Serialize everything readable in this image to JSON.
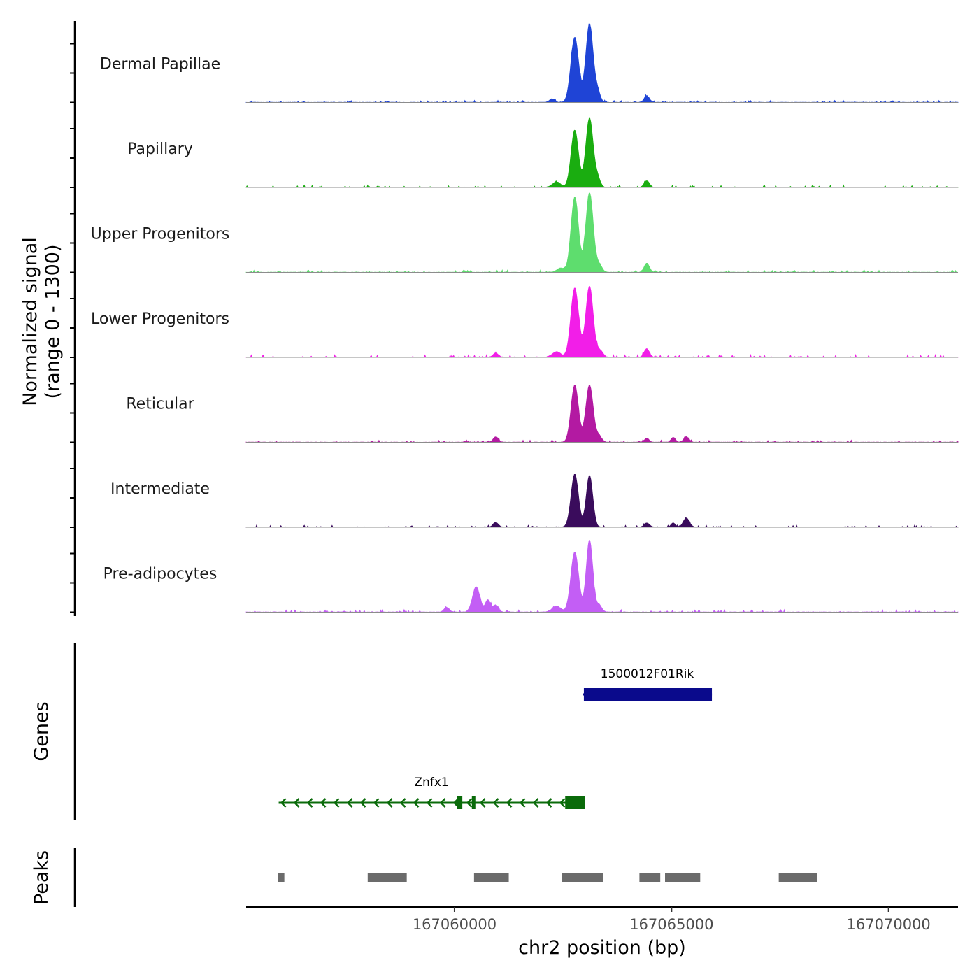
{
  "chart_data": {
    "type": "area",
    "title": "",
    "chromosome": "chr2",
    "xlabel": "chr2 position (bp)",
    "xlim": [
      167055200,
      167071600
    ],
    "xticks": [
      167060000,
      167065000,
      167070000
    ],
    "xtick_labels": [
      "167060000",
      "167065000",
      "167070000"
    ],
    "coverage": {
      "ylabel": "Normalized signal\n(range 0 - 1300)",
      "ylabel_lines": [
        "Normalized signal",
        "(range 0 - 1300)"
      ],
      "ylim": [
        0,
        1300
      ],
      "baseline_color": "#8c8c8c",
      "tracks": [
        {
          "name": "Dermal Papillae",
          "color": "#1f44d6",
          "peaks": [
            {
              "center": 167062770,
              "width": 90,
              "height": 1080
            },
            {
              "center": 167063110,
              "width": 85,
              "height": 1300
            },
            {
              "center": 167063300,
              "width": 60,
              "height": 160
            },
            {
              "center": 167064430,
              "width": 60,
              "height": 110
            },
            {
              "center": 167062250,
              "width": 60,
              "height": 60
            }
          ],
          "noise": 35
        },
        {
          "name": "Papillary",
          "color": "#1aad10",
          "peaks": [
            {
              "center": 167062770,
              "width": 85,
              "height": 950
            },
            {
              "center": 167063110,
              "width": 85,
              "height": 1150
            },
            {
              "center": 167063300,
              "width": 60,
              "height": 140
            },
            {
              "center": 167064430,
              "width": 60,
              "height": 110
            },
            {
              "center": 167062350,
              "width": 90,
              "height": 90
            }
          ],
          "noise": 40
        },
        {
          "name": "Upper Progenitors",
          "color": "#5edd6e",
          "peaks": [
            {
              "center": 167062770,
              "width": 85,
              "height": 1250
            },
            {
              "center": 167063110,
              "width": 85,
              "height": 1320
            },
            {
              "center": 167063330,
              "width": 70,
              "height": 120
            },
            {
              "center": 167064430,
              "width": 60,
              "height": 150
            },
            {
              "center": 167062450,
              "width": 90,
              "height": 70
            }
          ],
          "noise": 40
        },
        {
          "name": "Lower Progenitors",
          "color": "#f21ee8",
          "peaks": [
            {
              "center": 167062770,
              "width": 90,
              "height": 1150
            },
            {
              "center": 167063110,
              "width": 85,
              "height": 1180
            },
            {
              "center": 167063350,
              "width": 70,
              "height": 110
            },
            {
              "center": 167064430,
              "width": 60,
              "height": 140
            },
            {
              "center": 167060950,
              "width": 60,
              "height": 70
            },
            {
              "center": 167062350,
              "width": 100,
              "height": 90
            }
          ],
          "noise": 45
        },
        {
          "name": "Reticular",
          "color": "#b31aa2",
          "peaks": [
            {
              "center": 167062770,
              "width": 85,
              "height": 950
            },
            {
              "center": 167063110,
              "width": 85,
              "height": 950
            },
            {
              "center": 167063330,
              "width": 60,
              "height": 100
            },
            {
              "center": 167060950,
              "width": 60,
              "height": 90
            },
            {
              "center": 167064430,
              "width": 50,
              "height": 70
            },
            {
              "center": 167065040,
              "width": 50,
              "height": 80
            },
            {
              "center": 167065340,
              "width": 60,
              "height": 90
            }
          ],
          "noise": 35
        },
        {
          "name": "Intermediate",
          "color": "#3a0c5c",
          "peaks": [
            {
              "center": 167062770,
              "width": 85,
              "height": 880
            },
            {
              "center": 167063110,
              "width": 75,
              "height": 860
            },
            {
              "center": 167060950,
              "width": 60,
              "height": 80
            },
            {
              "center": 167064430,
              "width": 60,
              "height": 70
            },
            {
              "center": 167065040,
              "width": 50,
              "height": 70
            },
            {
              "center": 167065340,
              "width": 70,
              "height": 150
            }
          ],
          "noise": 35
        },
        {
          "name": "Pre-adipocytes",
          "color": "#c35ef5",
          "peaks": [
            {
              "center": 167062770,
              "width": 90,
              "height": 1000
            },
            {
              "center": 167063110,
              "width": 75,
              "height": 1200
            },
            {
              "center": 167063330,
              "width": 60,
              "height": 120
            },
            {
              "center": 167060500,
              "width": 85,
              "height": 420
            },
            {
              "center": 167060770,
              "width": 60,
              "height": 200
            },
            {
              "center": 167060950,
              "width": 60,
              "height": 120
            },
            {
              "center": 167059820,
              "width": 60,
              "height": 80
            },
            {
              "center": 167062350,
              "width": 100,
              "height": 100
            }
          ],
          "noise": 45
        }
      ]
    },
    "genes": {
      "ylabel": "Genes",
      "items": [
        {
          "name": "1500012F01Rik",
          "color": "#0a0a8c",
          "strand": "-",
          "row": 0,
          "start": 167062950,
          "end": 167065930,
          "exons": [
            [
              167062980,
              167065930
            ]
          ]
        },
        {
          "name": "Znfx1",
          "color": "#0a6b0a",
          "strand": "-",
          "row": 1,
          "start": 167055950,
          "end": 167063000,
          "exons": [
            [
              167060050,
              167060180
            ],
            [
              167060400,
              167060450
            ],
            [
              167062550,
              167063000
            ]
          ]
        }
      ]
    },
    "peak_regions": {
      "ylabel": "Peaks",
      "color": "#6b6b6b",
      "regions": [
        [
          167055940,
          167056080
        ],
        [
          167058000,
          167058900
        ],
        [
          167060450,
          167061250
        ],
        [
          167062480,
          167063420
        ],
        [
          167064260,
          167064740
        ],
        [
          167064850,
          167065660
        ],
        [
          167067470,
          167068350
        ]
      ]
    }
  }
}
